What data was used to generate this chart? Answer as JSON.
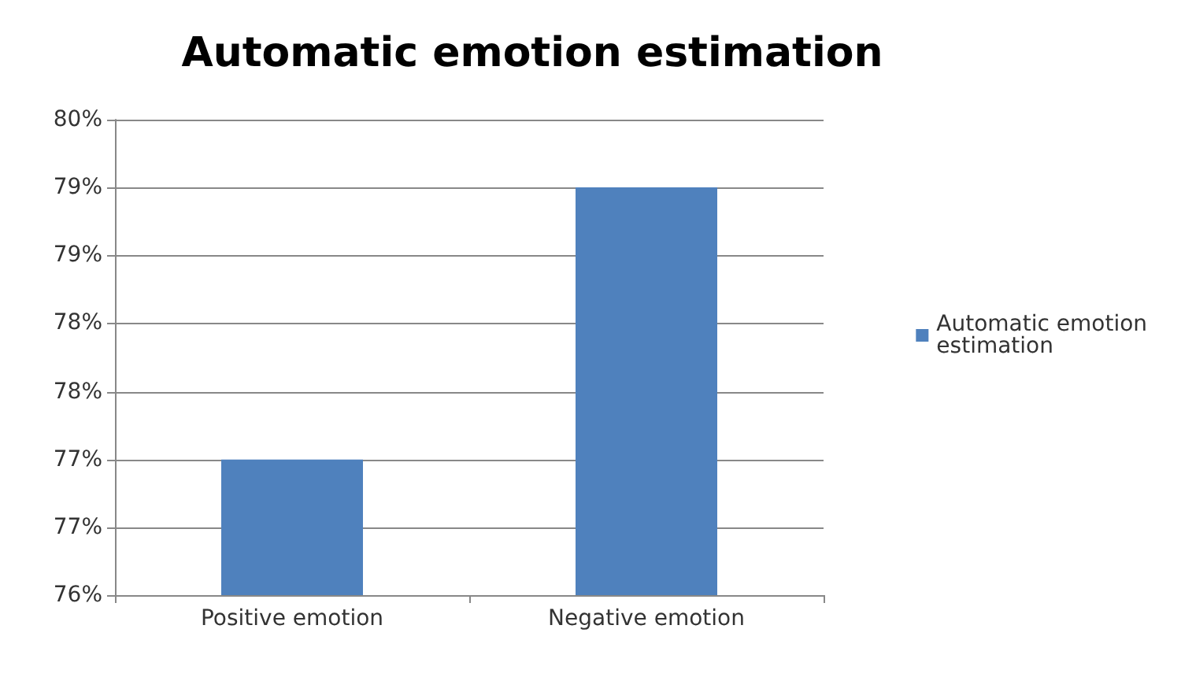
{
  "chart_data": {
    "type": "bar",
    "title": "Automatic emotion estimation",
    "categories": [
      "Positive emotion",
      "Negative emotion"
    ],
    "series": [
      {
        "name": "Automatic emotion estimation",
        "color": "#4f81bd",
        "values": [
          77.14,
          79.43
        ]
      }
    ],
    "ylim": [
      76,
      80
    ],
    "yticks": [
      {
        "value": 76,
        "label": "76%"
      },
      {
        "value": 76.57,
        "label": "77%"
      },
      {
        "value": 77.14,
        "label": "77%"
      },
      {
        "value": 77.71,
        "label": "78%"
      },
      {
        "value": 78.29,
        "label": "78%"
      },
      {
        "value": 78.86,
        "label": "79%"
      },
      {
        "value": 79.43,
        "label": "79%"
      },
      {
        "value": 80,
        "label": "80%"
      }
    ],
    "grid": "y",
    "legend": "right"
  }
}
